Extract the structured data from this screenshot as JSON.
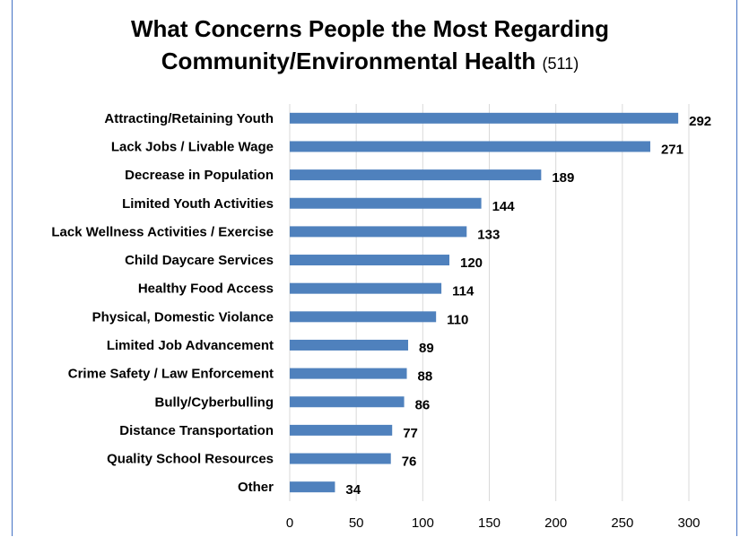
{
  "chart_data": {
    "type": "bar",
    "orientation": "horizontal",
    "title_line1": "What Concerns People the Most Regarding",
    "title_line2": "Community/Environmental Health",
    "title_count": "(511)",
    "categories": [
      "Attracting/Retaining Youth",
      "Lack Jobs / Livable Wage",
      "Decrease in Population",
      "Limited Youth Activities",
      "Lack Wellness Activities / Exercise",
      "Child Daycare Services",
      "Healthy Food Access",
      "Physical, Domestic Violance",
      "Limited Job Advancement",
      "Crime Safety / Law Enforcement",
      "Bully/Cyberbulling",
      "Distance Transportation",
      "Quality School Resources",
      "Other"
    ],
    "values": [
      292,
      271,
      189,
      144,
      133,
      120,
      114,
      110,
      89,
      88,
      86,
      77,
      76,
      34
    ],
    "xlim": [
      0,
      300
    ],
    "xticks": [
      0,
      50,
      100,
      150,
      200,
      250,
      300
    ],
    "grid": true,
    "bar_color": "#4F81BD",
    "gridline_color": "#D9D9D9"
  }
}
